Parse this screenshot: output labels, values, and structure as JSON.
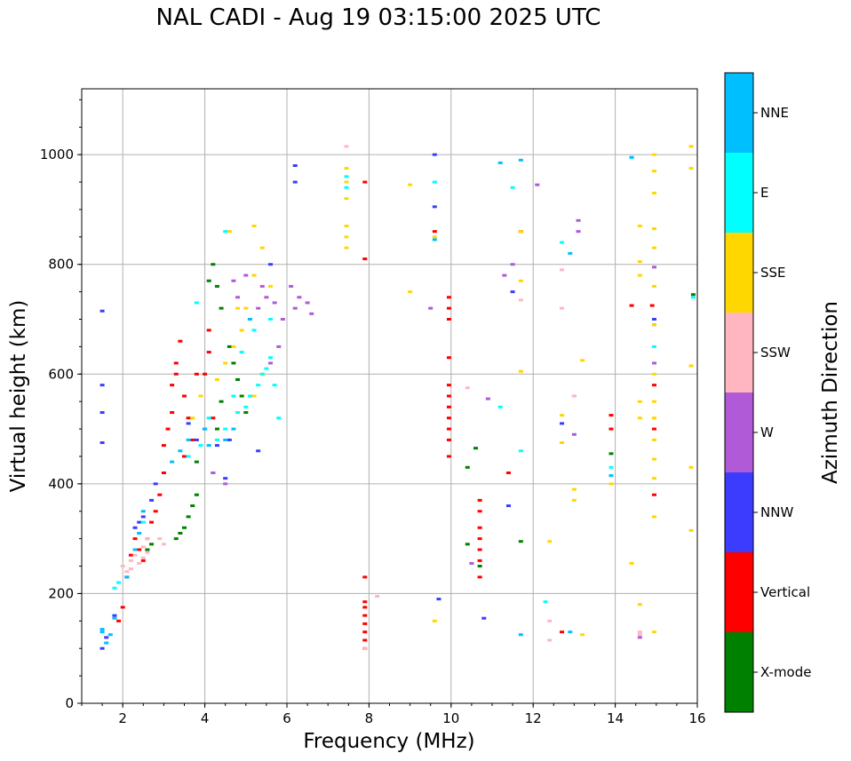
{
  "chart_data": {
    "type": "scatter",
    "title": "NAL CADI - Aug 19 03:15:00 2025 UTC",
    "xlabel": "Frequency (MHz)",
    "ylabel": "Virtual height (km)",
    "xlim": [
      1,
      16
    ],
    "ylim": [
      0,
      1120
    ],
    "xticks": [
      "2",
      "4",
      "6",
      "8",
      "10",
      "12",
      "14",
      "16"
    ],
    "yticks": [
      "0",
      "200",
      "400",
      "600",
      "800",
      "1000"
    ],
    "grid": true,
    "colorbar": {
      "label": "Azimuth Direction",
      "categories": [
        {
          "name": "X-mode",
          "color": "#008000"
        },
        {
          "name": "Vertical",
          "color": "#ff0000"
        },
        {
          "name": "NNW",
          "color": "#3c3cff"
        },
        {
          "name": "W",
          "color": "#b05ad8"
        },
        {
          "name": "SSW",
          "color": "#ffb6c1"
        },
        {
          "name": "SSE",
          "color": "#ffd700"
        },
        {
          "name": "E",
          "color": "#00ffff"
        },
        {
          "name": "NNE",
          "color": "#00bfff"
        }
      ]
    },
    "series": [
      {
        "name": "Vertical",
        "points": [
          [
            1.9,
            150
          ],
          [
            2.0,
            175
          ],
          [
            2.1,
            230
          ],
          [
            2.2,
            270
          ],
          [
            2.4,
            280
          ],
          [
            2.6,
            300
          ],
          [
            2.7,
            330
          ],
          [
            2.8,
            350
          ],
          [
            2.9,
            380
          ],
          [
            3.0,
            420
          ],
          [
            3.0,
            470
          ],
          [
            3.1,
            500
          ],
          [
            3.2,
            530
          ],
          [
            3.2,
            580
          ],
          [
            3.3,
            620
          ],
          [
            3.4,
            660
          ],
          [
            3.5,
            560
          ],
          [
            3.6,
            520
          ],
          [
            3.7,
            480
          ],
          [
            3.8,
            600
          ],
          [
            3.9,
            560
          ],
          [
            4.0,
            600
          ],
          [
            4.1,
            640
          ],
          [
            4.1,
            680
          ],
          [
            4.2,
            520
          ],
          [
            2.3,
            300
          ],
          [
            2.5,
            260
          ],
          [
            3.3,
            600
          ],
          [
            3.5,
            450
          ],
          [
            7.9,
            100
          ],
          [
            7.9,
            115
          ],
          [
            7.9,
            130
          ],
          [
            7.9,
            145
          ],
          [
            7.9,
            160
          ],
          [
            7.9,
            175
          ],
          [
            7.9,
            185
          ],
          [
            7.9,
            230
          ],
          [
            7.9,
            810
          ],
          [
            7.9,
            950
          ],
          [
            9.6,
            860
          ],
          [
            9.95,
            450
          ],
          [
            9.95,
            480
          ],
          [
            9.95,
            500
          ],
          [
            9.95,
            520
          ],
          [
            9.95,
            540
          ],
          [
            9.95,
            560
          ],
          [
            9.95,
            580
          ],
          [
            9.95,
            630
          ],
          [
            9.95,
            700
          ],
          [
            9.95,
            720
          ],
          [
            9.95,
            740
          ],
          [
            10.7,
            230
          ],
          [
            10.7,
            260
          ],
          [
            10.7,
            280
          ],
          [
            10.7,
            300
          ],
          [
            10.7,
            320
          ],
          [
            10.7,
            350
          ],
          [
            10.7,
            370
          ],
          [
            11.4,
            420
          ],
          [
            11.7,
            860
          ],
          [
            12.7,
            130
          ],
          [
            14.4,
            725
          ],
          [
            14.9,
            725
          ],
          [
            14.95,
            580
          ],
          [
            14.95,
            500
          ],
          [
            14.95,
            380
          ],
          [
            13.9,
            500
          ],
          [
            13.9,
            525
          ]
        ]
      },
      {
        "name": "X-mode",
        "points": [
          [
            2.6,
            280
          ],
          [
            2.7,
            290
          ],
          [
            3.3,
            300
          ],
          [
            3.4,
            310
          ],
          [
            3.5,
            320
          ],
          [
            3.6,
            340
          ],
          [
            3.7,
            360
          ],
          [
            3.8,
            380
          ],
          [
            3.8,
            440
          ],
          [
            4.1,
            770
          ],
          [
            4.2,
            800
          ],
          [
            4.3,
            760
          ],
          [
            4.4,
            720
          ],
          [
            4.6,
            650
          ],
          [
            4.7,
            620
          ],
          [
            4.8,
            590
          ],
          [
            4.9,
            560
          ],
          [
            5.0,
            530
          ],
          [
            4.4,
            550
          ],
          [
            4.3,
            500
          ],
          [
            10.4,
            430
          ],
          [
            10.4,
            290
          ],
          [
            10.6,
            465
          ],
          [
            10.7,
            250
          ],
          [
            13.9,
            455
          ],
          [
            15.9,
            745
          ],
          [
            14.95,
            690
          ],
          [
            11.7,
            295
          ]
        ]
      },
      {
        "name": "NNW",
        "points": [
          [
            1.5,
            100
          ],
          [
            1.6,
            120
          ],
          [
            1.8,
            160
          ],
          [
            2.3,
            320
          ],
          [
            2.4,
            330
          ],
          [
            2.5,
            340
          ],
          [
            2.7,
            370
          ],
          [
            2.8,
            400
          ],
          [
            3.6,
            510
          ],
          [
            3.8,
            480
          ],
          [
            4.0,
            500
          ],
          [
            4.3,
            470
          ],
          [
            4.6,
            480
          ],
          [
            4.5,
            410
          ],
          [
            4.2,
            420
          ],
          [
            5.3,
            460
          ],
          [
            5.6,
            800
          ],
          [
            1.5,
            715
          ],
          [
            1.5,
            580
          ],
          [
            1.5,
            530
          ],
          [
            1.5,
            475
          ],
          [
            6.2,
            980
          ],
          [
            6.2,
            950
          ],
          [
            9.6,
            1000
          ],
          [
            9.6,
            905
          ],
          [
            9.7,
            190
          ],
          [
            10.8,
            155
          ],
          [
            11.4,
            360
          ],
          [
            11.5,
            750
          ],
          [
            12.7,
            510
          ],
          [
            14.95,
            700
          ]
        ]
      },
      {
        "name": "W",
        "points": [
          [
            4.2,
            420
          ],
          [
            4.5,
            400
          ],
          [
            5.1,
            700
          ],
          [
            5.3,
            720
          ],
          [
            5.5,
            740
          ],
          [
            5.7,
            730
          ],
          [
            5.9,
            700
          ],
          [
            6.1,
            760
          ],
          [
            6.2,
            720
          ],
          [
            6.3,
            740
          ],
          [
            6.5,
            730
          ],
          [
            6.6,
            710
          ],
          [
            5.8,
            650
          ],
          [
            5.6,
            620
          ],
          [
            5.4,
            760
          ],
          [
            5.0,
            780
          ],
          [
            4.8,
            740
          ],
          [
            4.7,
            770
          ],
          [
            9.5,
            720
          ],
          [
            10.5,
            255
          ],
          [
            10.9,
            555
          ],
          [
            11.3,
            780
          ],
          [
            11.5,
            800
          ],
          [
            12.1,
            945
          ],
          [
            13.0,
            560
          ],
          [
            13.0,
            490
          ],
          [
            13.1,
            880
          ],
          [
            13.1,
            860
          ],
          [
            14.6,
            120
          ],
          [
            14.95,
            620
          ],
          [
            14.95,
            795
          ]
        ]
      },
      {
        "name": "SSW",
        "points": [
          [
            2.0,
            250
          ],
          [
            2.1,
            240
          ],
          [
            2.2,
            260
          ],
          [
            2.3,
            270
          ],
          [
            2.4,
            255
          ],
          [
            2.5,
            265
          ],
          [
            2.6,
            275
          ],
          [
            2.5,
            285
          ],
          [
            2.2,
            245
          ],
          [
            2.9,
            300
          ],
          [
            3.0,
            290
          ],
          [
            2.6,
            300
          ],
          [
            7.45,
            1015
          ],
          [
            7.9,
            100
          ],
          [
            8.2,
            195
          ],
          [
            10.4,
            575
          ],
          [
            11.7,
            735
          ],
          [
            12.4,
            150
          ],
          [
            12.4,
            115
          ],
          [
            12.7,
            720
          ],
          [
            12.7,
            790
          ],
          [
            13.0,
            560
          ],
          [
            14.6,
            125
          ],
          [
            14.6,
            130
          ]
        ]
      },
      {
        "name": "SSE",
        "points": [
          [
            3.7,
            520
          ],
          [
            3.9,
            560
          ],
          [
            4.3,
            590
          ],
          [
            4.5,
            620
          ],
          [
            4.7,
            650
          ],
          [
            4.9,
            680
          ],
          [
            5.0,
            720
          ],
          [
            5.2,
            780
          ],
          [
            5.4,
            830
          ],
          [
            5.6,
            760
          ],
          [
            5.2,
            560
          ],
          [
            5.4,
            600
          ],
          [
            4.6,
            860
          ],
          [
            5.2,
            870
          ],
          [
            4.8,
            720
          ],
          [
            7.45,
            830
          ],
          [
            7.45,
            850
          ],
          [
            7.45,
            870
          ],
          [
            7.45,
            920
          ],
          [
            7.45,
            950
          ],
          [
            7.45,
            975
          ],
          [
            9.0,
            945
          ],
          [
            9.0,
            750
          ],
          [
            9.6,
            150
          ],
          [
            9.6,
            850
          ],
          [
            11.7,
            605
          ],
          [
            11.7,
            770
          ],
          [
            11.7,
            860
          ],
          [
            12.4,
            295
          ],
          [
            12.7,
            525
          ],
          [
            12.7,
            475
          ],
          [
            13.0,
            390
          ],
          [
            13.0,
            370
          ],
          [
            13.2,
            625
          ],
          [
            13.2,
            125
          ],
          [
            13.9,
            400
          ],
          [
            14.4,
            255
          ],
          [
            14.6,
            180
          ],
          [
            14.6,
            520
          ],
          [
            14.6,
            550
          ],
          [
            14.6,
            780
          ],
          [
            14.6,
            805
          ],
          [
            14.6,
            870
          ],
          [
            14.95,
            340
          ],
          [
            14.95,
            410
          ],
          [
            14.95,
            445
          ],
          [
            14.95,
            480
          ],
          [
            14.95,
            520
          ],
          [
            14.95,
            550
          ],
          [
            14.95,
            600
          ],
          [
            14.95,
            690
          ],
          [
            14.95,
            760
          ],
          [
            14.95,
            830
          ],
          [
            14.95,
            865
          ],
          [
            14.95,
            930
          ],
          [
            14.95,
            970
          ],
          [
            14.95,
            1000
          ],
          [
            14.95,
            130
          ],
          [
            15.85,
            1015
          ],
          [
            15.85,
            975
          ],
          [
            15.85,
            615
          ],
          [
            15.85,
            430
          ],
          [
            15.85,
            315
          ]
        ]
      },
      {
        "name": "E",
        "points": [
          [
            1.8,
            210
          ],
          [
            1.9,
            220
          ],
          [
            2.5,
            330
          ],
          [
            3.6,
            450
          ],
          [
            3.9,
            470
          ],
          [
            4.1,
            520
          ],
          [
            4.3,
            480
          ],
          [
            4.5,
            500
          ],
          [
            4.7,
            560
          ],
          [
            4.8,
            530
          ],
          [
            5.0,
            540
          ],
          [
            5.1,
            560
          ],
          [
            5.3,
            580
          ],
          [
            5.4,
            600
          ],
          [
            5.5,
            610
          ],
          [
            5.6,
            630
          ],
          [
            5.7,
            580
          ],
          [
            5.8,
            520
          ],
          [
            4.9,
            640
          ],
          [
            5.2,
            680
          ],
          [
            5.6,
            700
          ],
          [
            4.5,
            860
          ],
          [
            3.8,
            730
          ],
          [
            7.45,
            940
          ],
          [
            7.45,
            960
          ],
          [
            9.6,
            950
          ],
          [
            11.2,
            540
          ],
          [
            11.5,
            940
          ],
          [
            11.7,
            460
          ],
          [
            12.3,
            185
          ],
          [
            12.7,
            840
          ],
          [
            13.9,
            430
          ],
          [
            14.4,
            995
          ],
          [
            15.9,
            740
          ],
          [
            14.95,
            650
          ]
        ]
      },
      {
        "name": "NNE",
        "points": [
          [
            1.5,
            130
          ],
          [
            1.6,
            110
          ],
          [
            1.7,
            125
          ],
          [
            1.8,
            155
          ],
          [
            2.1,
            230
          ],
          [
            2.3,
            280
          ],
          [
            2.4,
            310
          ],
          [
            2.5,
            350
          ],
          [
            3.2,
            440
          ],
          [
            3.4,
            460
          ],
          [
            3.6,
            480
          ],
          [
            4.0,
            500
          ],
          [
            4.5,
            480
          ],
          [
            4.7,
            500
          ],
          [
            5.1,
            700
          ],
          [
            4.1,
            470
          ],
          [
            1.5,
            135
          ],
          [
            9.6,
            845
          ],
          [
            11.2,
            985
          ],
          [
            11.7,
            990
          ],
          [
            11.7,
            125
          ],
          [
            12.9,
            130
          ],
          [
            12.9,
            820
          ],
          [
            13.9,
            415
          ],
          [
            14.4,
            995
          ]
        ]
      }
    ]
  }
}
